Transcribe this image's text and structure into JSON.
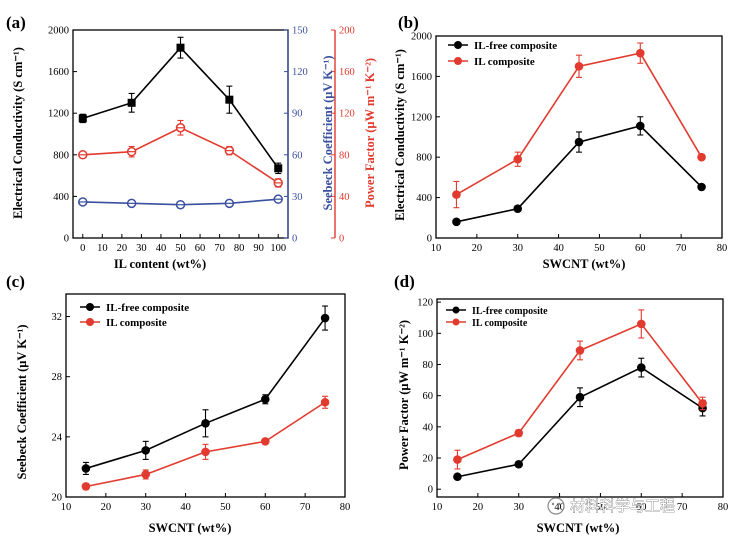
{
  "figure": {
    "watermark": "材料科学与工程",
    "colors": {
      "black": "#000000",
      "red": "#e23a2e",
      "blue": "#3a4fa0"
    }
  },
  "chart_data": [
    {
      "panel": "(a)",
      "type": "line",
      "xlabel": "IL content (wt%)",
      "xlim": [
        -5,
        105
      ],
      "xticks": [
        0,
        10,
        20,
        30,
        40,
        50,
        60,
        70,
        80,
        90,
        100
      ],
      "x": [
        0,
        25,
        50,
        75,
        100
      ],
      "axes": {
        "left": {
          "label": "Electrical Conductivity (S cm⁻¹)",
          "ylim": [
            0,
            2000
          ],
          "yticks": [
            0,
            400,
            800,
            1200,
            1600,
            2000
          ],
          "color": "#000000"
        },
        "right1": {
          "label": "Seebeck Coefficient (μV K⁻¹)",
          "ylim": [
            0,
            150
          ],
          "yticks": [
            0,
            30,
            60,
            90,
            120,
            150
          ],
          "color": "#3a4fa0"
        },
        "right2": {
          "label": "Power Factor (μW m⁻¹ K⁻²)",
          "ylim": [
            0,
            200
          ],
          "yticks": [
            0,
            40,
            80,
            120,
            160,
            200
          ],
          "color": "#e23a2e"
        }
      },
      "series": [
        {
          "name": "Electrical Conductivity",
          "axis": "left",
          "marker": "square",
          "color": "#000000",
          "values": [
            1150,
            1300,
            1830,
            1330,
            670
          ],
          "errors": [
            40,
            90,
            100,
            130,
            50
          ]
        },
        {
          "name": "Seebeck Coefficient",
          "axis": "right1",
          "marker": "circle",
          "color": "#3a4fa0",
          "values": [
            26,
            25,
            24,
            25,
            28
          ],
          "errors": [
            1,
            1,
            1,
            1,
            1
          ]
        },
        {
          "name": "Power Factor",
          "axis": "right2",
          "marker": "circle",
          "color": "#e23a2e",
          "values": [
            80,
            83,
            106,
            84,
            53
          ],
          "errors": [
            2,
            5,
            7,
            4,
            4
          ]
        }
      ]
    },
    {
      "panel": "(b)",
      "type": "line",
      "xlabel": "SWCNT (wt%)",
      "ylabel": "Electrical Conductivity (S cm⁻¹)",
      "xlim": [
        10,
        80
      ],
      "xticks": [
        10,
        20,
        30,
        40,
        50,
        60,
        70,
        80
      ],
      "ylim": [
        0,
        2000
      ],
      "yticks": [
        0,
        400,
        800,
        1200,
        1600,
        2000
      ],
      "x": [
        15,
        30,
        45,
        60,
        75
      ],
      "legend": "top-left",
      "series": [
        {
          "name": "IL-free composite",
          "color": "#000000",
          "values": [
            160,
            290,
            950,
            1110,
            505
          ],
          "errors": [
            20,
            25,
            100,
            90,
            20
          ]
        },
        {
          "name": "IL composite",
          "color": "#e23a2e",
          "values": [
            430,
            780,
            1700,
            1830,
            800
          ],
          "errors": [
            130,
            70,
            110,
            100,
            15
          ]
        }
      ]
    },
    {
      "panel": "(c)",
      "type": "line",
      "xlabel": "SWCNT (wt%)",
      "ylabel": "Seebeck Coefficient (μV K⁻¹)",
      "xlim": [
        10,
        80
      ],
      "xticks": [
        10,
        20,
        30,
        40,
        50,
        60,
        70,
        80
      ],
      "ylim": [
        20,
        33.5
      ],
      "yticks": [
        20,
        24,
        28,
        32
      ],
      "x": [
        15,
        30,
        45,
        60,
        75
      ],
      "legend": "top-left",
      "series": [
        {
          "name": "IL-free composite",
          "color": "#000000",
          "values": [
            21.9,
            23.1,
            24.9,
            26.5,
            31.9
          ],
          "errors": [
            0.4,
            0.6,
            0.9,
            0.3,
            0.8
          ]
        },
        {
          "name": "IL composite",
          "color": "#e23a2e",
          "values": [
            20.7,
            21.5,
            23.0,
            23.7,
            26.3
          ],
          "errors": [
            0.2,
            0.3,
            0.5,
            0.1,
            0.4
          ]
        }
      ]
    },
    {
      "panel": "(d)",
      "type": "line",
      "xlabel": "SWCNT (wt%)",
      "ylabel": "Power Factor (μW m⁻¹ K⁻²)",
      "xlim": [
        10,
        80
      ],
      "xticks": [
        10,
        20,
        30,
        40,
        50,
        60,
        70,
        80
      ],
      "ylim": [
        -5,
        122
      ],
      "yticks": [
        0,
        20,
        40,
        60,
        80,
        100,
        120
      ],
      "x": [
        15,
        30,
        45,
        60,
        75
      ],
      "legend": "top-left",
      "series": [
        {
          "name": "IL-free composite",
          "color": "#000000",
          "values": [
            8,
            16,
            59,
            78,
            52
          ],
          "errors": [
            1,
            1,
            6,
            6,
            5
          ]
        },
        {
          "name": "IL composite",
          "color": "#e23a2e",
          "values": [
            19,
            36,
            89,
            106,
            55
          ],
          "errors": [
            6,
            2,
            6,
            9,
            4
          ]
        }
      ]
    }
  ]
}
